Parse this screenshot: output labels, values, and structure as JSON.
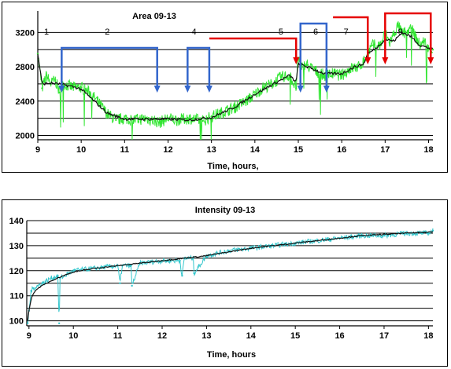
{
  "colors": {
    "raw_top": "#33e633",
    "raw_bottom": "#33c6cc",
    "smooth": "#111111",
    "grid": "#000000",
    "arrow_blue": "#3366cc",
    "arrow_red": "#e60000"
  },
  "chart_data": [
    {
      "type": "line",
      "title": "Area 09-13",
      "xlabel": "Time, hours,",
      "ylabel": "",
      "xlim": [
        9,
        18.1
      ],
      "ylim": [
        1950,
        3450
      ],
      "x_ticks": [
        9,
        10,
        11,
        12,
        13,
        14,
        15,
        16,
        17,
        18
      ],
      "x_tick_labels": [
        "9",
        "10",
        "11",
        "12",
        "13",
        "14",
        "15",
        "16",
        "17",
        "18"
      ],
      "y_ticks": [
        2000,
        2400,
        2800,
        3200
      ],
      "y_tick_labels": [
        "2000",
        "2400",
        "2800",
        "3200"
      ],
      "grid": true,
      "segment_labels": [
        {
          "text": "1",
          "x": 9.2
        },
        {
          "text": "2",
          "x": 10.6
        },
        {
          "text": "4",
          "x": 12.6
        },
        {
          "text": "5",
          "x": 14.6
        },
        {
          "text": "6",
          "x": 15.4
        },
        {
          "text": "7",
          "x": 16.1
        },
        {
          "text": "9",
          "x": 17.35
        }
      ],
      "series": [
        {
          "role": "raw",
          "x": [
            9.0,
            9.1,
            9.2,
            9.3,
            9.4,
            9.5,
            9.6,
            9.8,
            10.0,
            10.2,
            10.4,
            10.6,
            10.8,
            11.0,
            11.2,
            11.5,
            11.8,
            12.0,
            12.2,
            12.5,
            12.8,
            13.0,
            13.2,
            13.5,
            13.8,
            14.0,
            14.2,
            14.4,
            14.6,
            14.8,
            14.95,
            15.0,
            15.05,
            15.2,
            15.4,
            15.6,
            15.8,
            16.0,
            16.2,
            16.4,
            16.5,
            16.6,
            16.7,
            16.9,
            17.0,
            17.1,
            17.3,
            17.4,
            17.6,
            17.8,
            17.9,
            18.0,
            18.1
          ],
          "values": [
            2950,
            2550,
            2700,
            2600,
            2650,
            2500,
            2600,
            2560,
            2560,
            2500,
            2380,
            2250,
            2180,
            2200,
            2180,
            2200,
            2150,
            2200,
            2180,
            2200,
            2170,
            2220,
            2260,
            2320,
            2400,
            2480,
            2560,
            2600,
            2680,
            2700,
            2550,
            2900,
            2800,
            2820,
            2750,
            2700,
            2720,
            2700,
            2780,
            2800,
            2860,
            2950,
            3050,
            3050,
            3200,
            3080,
            3280,
            3180,
            3250,
            3050,
            3100,
            3000,
            3000
          ]
        },
        {
          "role": "smoothed",
          "x": [
            9.0,
            9.1,
            9.3,
            9.5,
            9.8,
            10.0,
            10.3,
            10.6,
            11.0,
            11.5,
            12.0,
            12.5,
            13.0,
            13.5,
            14.0,
            14.5,
            14.8,
            14.95,
            15.0,
            15.3,
            15.6,
            16.0,
            16.3,
            16.5,
            16.6,
            16.8,
            17.0,
            17.2,
            17.4,
            17.6,
            17.8,
            18.0,
            18.1
          ],
          "values": [
            2950,
            2600,
            2610,
            2600,
            2570,
            2540,
            2400,
            2260,
            2190,
            2190,
            2190,
            2180,
            2210,
            2320,
            2480,
            2620,
            2700,
            2620,
            2840,
            2780,
            2720,
            2720,
            2800,
            2830,
            2950,
            3020,
            3120,
            3100,
            3200,
            3150,
            3050,
            3020,
            3000
          ]
        }
      ],
      "annotations": [
        {
          "color": "blue",
          "from": 9.55,
          "to": 11.75,
          "direction": "bracket-down"
        },
        {
          "color": "blue",
          "from": 12.45,
          "to": 12.95,
          "direction": "bracket-down"
        },
        {
          "color": "red",
          "from": 12.95,
          "to": 14.95,
          "direction": "bracket-down-end"
        },
        {
          "color": "blue",
          "from": 15.05,
          "to": 15.65,
          "direction": "bracket-down"
        },
        {
          "color": "red",
          "from": 15.8,
          "to": 16.6,
          "direction": "bracket-down-end"
        },
        {
          "color": "red",
          "from": 17.0,
          "to": 18.05,
          "direction": "bracket-down"
        }
      ]
    },
    {
      "type": "line",
      "title": "Intensity 09-13",
      "xlabel": "Time, hours",
      "ylabel": "",
      "xlim": [
        8.95,
        18.1
      ],
      "ylim": [
        98,
        140
      ],
      "x_ticks": [
        9,
        10,
        11,
        12,
        13,
        14,
        15,
        16,
        17,
        18
      ],
      "x_tick_labels": [
        "9",
        "10",
        "11",
        "12",
        "13",
        "14",
        "15",
        "16",
        "17",
        "18"
      ],
      "y_ticks": [
        100,
        110,
        120,
        130,
        140
      ],
      "y_tick_labels": [
        "100",
        "110",
        "120",
        "130",
        "140"
      ],
      "grid": true,
      "series": [
        {
          "role": "raw",
          "x": [
            8.97,
            9.0,
            9.05,
            9.1,
            9.2,
            9.3,
            9.5,
            9.65,
            9.68,
            9.7,
            9.8,
            10.0,
            10.5,
            11.0,
            11.05,
            11.1,
            11.3,
            11.32,
            11.5,
            12.0,
            12.4,
            12.45,
            12.5,
            12.7,
            12.72,
            13.0,
            13.5,
            14.0,
            14.5,
            15.0,
            15.5,
            16.0,
            16.5,
            17.0,
            17.5,
            18.0,
            18.1
          ],
          "values": [
            99,
            104,
            112,
            113,
            114,
            115,
            117,
            118,
            99,
            117,
            118,
            120,
            121,
            122,
            115,
            122,
            122,
            114,
            123,
            124,
            124,
            118,
            125,
            125,
            119,
            126,
            128,
            129,
            130,
            131,
            132,
            133,
            134,
            134,
            135,
            135,
            136
          ]
        },
        {
          "role": "smoothed",
          "x": [
            8.97,
            9.0,
            9.05,
            9.1,
            9.2,
            9.3,
            9.5,
            9.7,
            10.0,
            10.5,
            11.0,
            11.5,
            12.0,
            12.5,
            13.0,
            13.5,
            14.0,
            14.5,
            15.0,
            15.5,
            16.0,
            16.5,
            17.0,
            17.5,
            18.0,
            18.1
          ],
          "values": [
            100,
            104,
            109,
            111,
            113,
            114,
            116,
            117.5,
            119.5,
            121,
            122,
            123,
            124,
            125,
            126,
            127.5,
            129,
            130,
            131,
            132,
            133,
            134,
            134.5,
            135,
            135.5,
            135.5
          ]
        }
      ]
    }
  ]
}
